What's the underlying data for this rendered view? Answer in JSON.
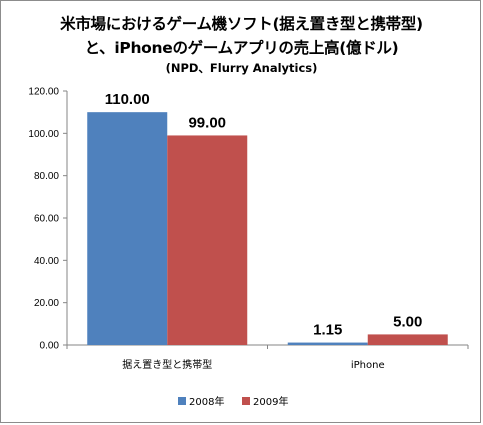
{
  "chart_data": {
    "type": "bar",
    "title": "米市場におけるゲーム機ソフト(据え置き型と携帯型)",
    "subtitle_line2": "と、iPhoneのゲームアプリの売上高(億ドル)",
    "subtitle_line3": "(NPD、Flurry Analytics)",
    "categories": [
      "据え置き型と携帯型",
      "iPhone"
    ],
    "series": [
      {
        "name": "2008年",
        "color": "#4f81bd",
        "values": [
          110.0,
          1.15
        ],
        "labels": [
          "110.00",
          "1.15"
        ]
      },
      {
        "name": "2009年",
        "color": "#c0504d",
        "values": [
          99.0,
          5.0
        ],
        "labels": [
          "99.00",
          "5.00"
        ]
      }
    ],
    "ylim": [
      0,
      120
    ],
    "yticks": [
      "0.00",
      "20.00",
      "40.00",
      "60.00",
      "80.00",
      "100.00",
      "120.00"
    ],
    "xlabel": "",
    "ylabel": "",
    "grid": false,
    "legend_position": "bottom"
  }
}
